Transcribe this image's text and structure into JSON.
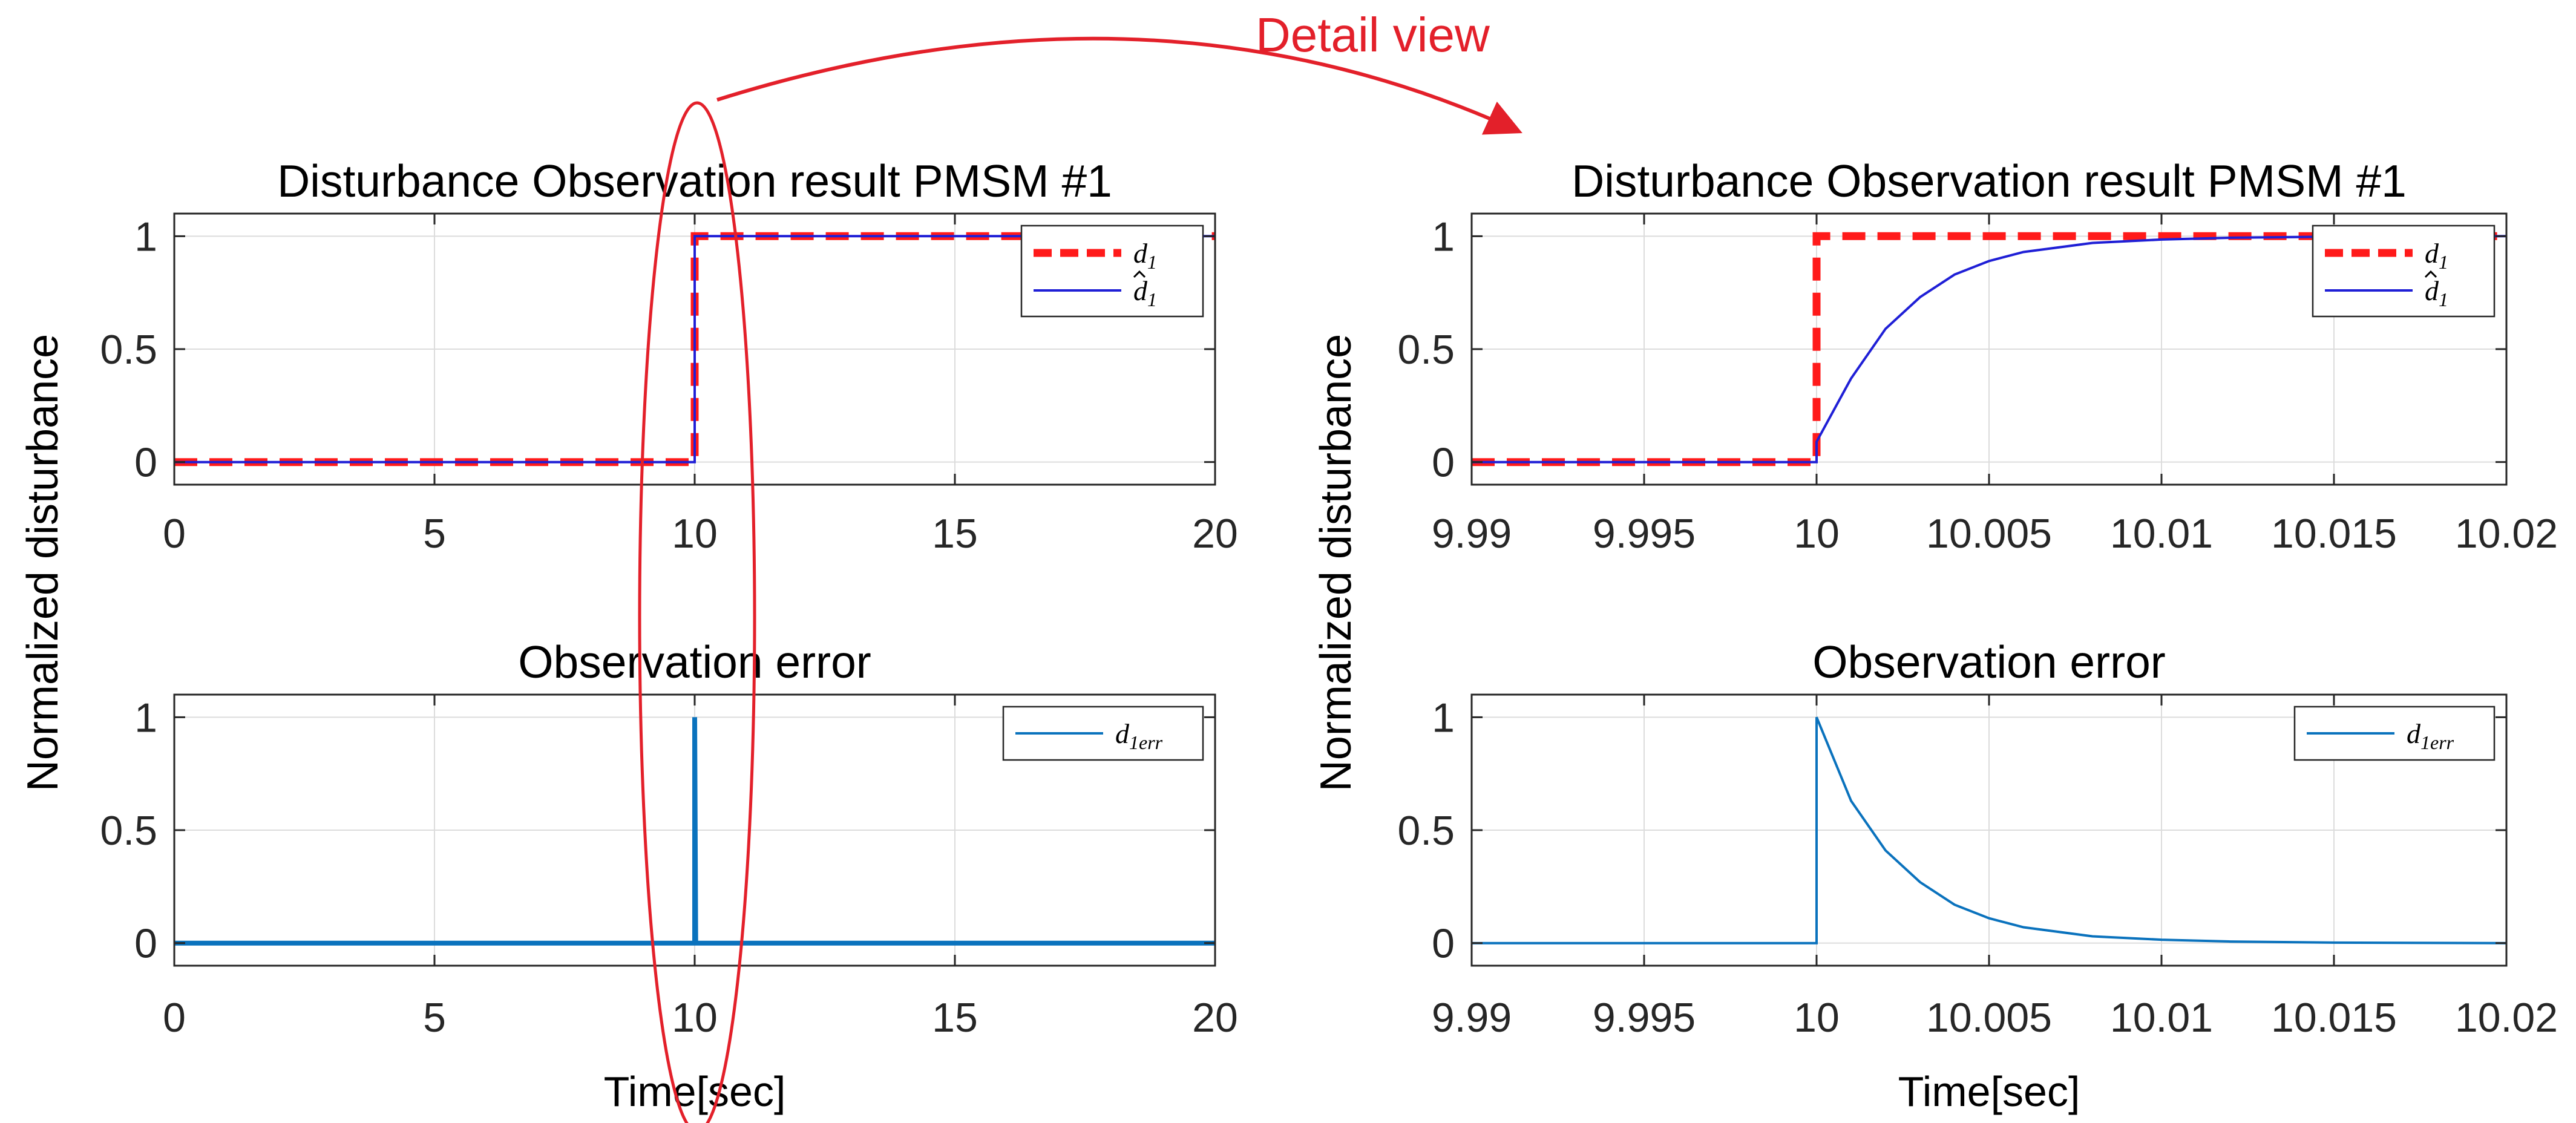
{
  "annotation": {
    "label": "Detail view",
    "color": "#e3202a"
  },
  "colors": {
    "ref": "#ff1a1a",
    "est": "#1f1fd6",
    "err": "#0a72bd",
    "grid": "#dcdcdc",
    "axis": "#262626"
  },
  "chart_data": [
    {
      "id": "top-left",
      "type": "line",
      "title": "Disturbance Observation result PMSM #1",
      "xlabel": "",
      "ylabel": "Normalized disturbance",
      "xlim": [
        0,
        20
      ],
      "ylim": [
        -0.1,
        1.1
      ],
      "xticks": [
        0,
        5,
        10,
        15,
        20
      ],
      "xtick_labels": [
        "0",
        "5",
        "10",
        "15",
        "20"
      ],
      "yticks": [
        0,
        0.5,
        1
      ],
      "ytick_labels": [
        "0",
        "0.5",
        "1"
      ],
      "grid": true,
      "legend": {
        "position": "top-right",
        "entries": [
          {
            "label": "d",
            "sub": "1",
            "hat": false,
            "style": "ref"
          },
          {
            "label": "d",
            "sub": "1",
            "hat": true,
            "style": "est"
          }
        ]
      },
      "series": [
        {
          "name": "d1",
          "style": "ref",
          "x": [
            0,
            10,
            10,
            20
          ],
          "y": [
            0,
            0,
            1,
            1
          ]
        },
        {
          "name": "d1_hat",
          "style": "est",
          "x": [
            0,
            10,
            10,
            20
          ],
          "y": [
            0,
            0,
            1,
            1
          ]
        }
      ]
    },
    {
      "id": "top-right",
      "type": "line",
      "title": "Disturbance Observation result PMSM #1",
      "xlabel": "",
      "ylabel": "Normalized disturbance",
      "xlim": [
        9.99,
        10.02
      ],
      "ylim": [
        -0.1,
        1.1
      ],
      "xticks": [
        9.99,
        9.995,
        10,
        10.005,
        10.01,
        10.015,
        10.02
      ],
      "xtick_labels": [
        "9.99",
        "9.995",
        "10",
        "10.005",
        "10.01",
        "10.015",
        "10.02"
      ],
      "yticks": [
        0,
        0.5,
        1
      ],
      "ytick_labels": [
        "0",
        "0.5",
        "1"
      ],
      "grid": true,
      "legend": {
        "position": "top-right",
        "entries": [
          {
            "label": "d",
            "sub": "1",
            "hat": false,
            "style": "ref"
          },
          {
            "label": "d",
            "sub": "1",
            "hat": true,
            "style": "est"
          }
        ]
      },
      "series": [
        {
          "name": "d1",
          "style": "ref",
          "x": [
            9.99,
            10,
            10,
            10.02
          ],
          "y": [
            0,
            0,
            1,
            1
          ]
        },
        {
          "name": "d1_hat",
          "style": "est",
          "x": [
            9.99,
            10,
            10,
            10.001,
            10.002,
            10.003,
            10.004,
            10.005,
            10.006,
            10.008,
            10.01,
            10.012,
            10.015,
            10.02
          ],
          "y": [
            0,
            0,
            0.09,
            0.37,
            0.59,
            0.73,
            0.83,
            0.89,
            0.93,
            0.97,
            0.985,
            0.993,
            0.998,
            1.0
          ]
        }
      ]
    },
    {
      "id": "bottom-left",
      "type": "line",
      "title": "Observation error",
      "xlabel": "Time[sec]",
      "ylabel": "Normalized disturbance",
      "xlim": [
        0,
        20
      ],
      "ylim": [
        -0.1,
        1.1
      ],
      "xticks": [
        0,
        5,
        10,
        15,
        20
      ],
      "xtick_labels": [
        "0",
        "5",
        "10",
        "15",
        "20"
      ],
      "yticks": [
        0,
        0.5,
        1
      ],
      "ytick_labels": [
        "0",
        "0.5",
        "1"
      ],
      "grid": true,
      "legend": {
        "position": "top-right",
        "entries": [
          {
            "label": "d",
            "sub": "1err",
            "hat": false,
            "style": "err"
          }
        ]
      },
      "series": [
        {
          "name": "d1err",
          "style": "err-thick",
          "x": [
            0,
            10,
            10,
            10.02,
            20
          ],
          "y": [
            0,
            0,
            1,
            0,
            0
          ]
        }
      ]
    },
    {
      "id": "bottom-right",
      "type": "line",
      "title": "Observation error",
      "xlabel": "Time[sec]",
      "ylabel": "Normalized disturbance",
      "xlim": [
        9.99,
        10.02
      ],
      "ylim": [
        -0.1,
        1.1
      ],
      "xticks": [
        9.99,
        9.995,
        10,
        10.005,
        10.01,
        10.015,
        10.02
      ],
      "xtick_labels": [
        "9.99",
        "9.995",
        "10",
        "10.005",
        "10.01",
        "10.015",
        "10.02"
      ],
      "yticks": [
        0,
        0.5,
        1
      ],
      "ytick_labels": [
        "0",
        "0.5",
        "1"
      ],
      "grid": true,
      "legend": {
        "position": "top-right",
        "entries": [
          {
            "label": "d",
            "sub": "1err",
            "hat": false,
            "style": "err"
          }
        ]
      },
      "series": [
        {
          "name": "d1err",
          "style": "err",
          "x": [
            9.99,
            10,
            10,
            10.001,
            10.002,
            10.003,
            10.004,
            10.005,
            10.006,
            10.008,
            10.01,
            10.012,
            10.015,
            10.02
          ],
          "y": [
            0,
            0,
            1.0,
            0.63,
            0.41,
            0.27,
            0.17,
            0.11,
            0.07,
            0.03,
            0.015,
            0.007,
            0.002,
            0
          ]
        }
      ]
    }
  ]
}
